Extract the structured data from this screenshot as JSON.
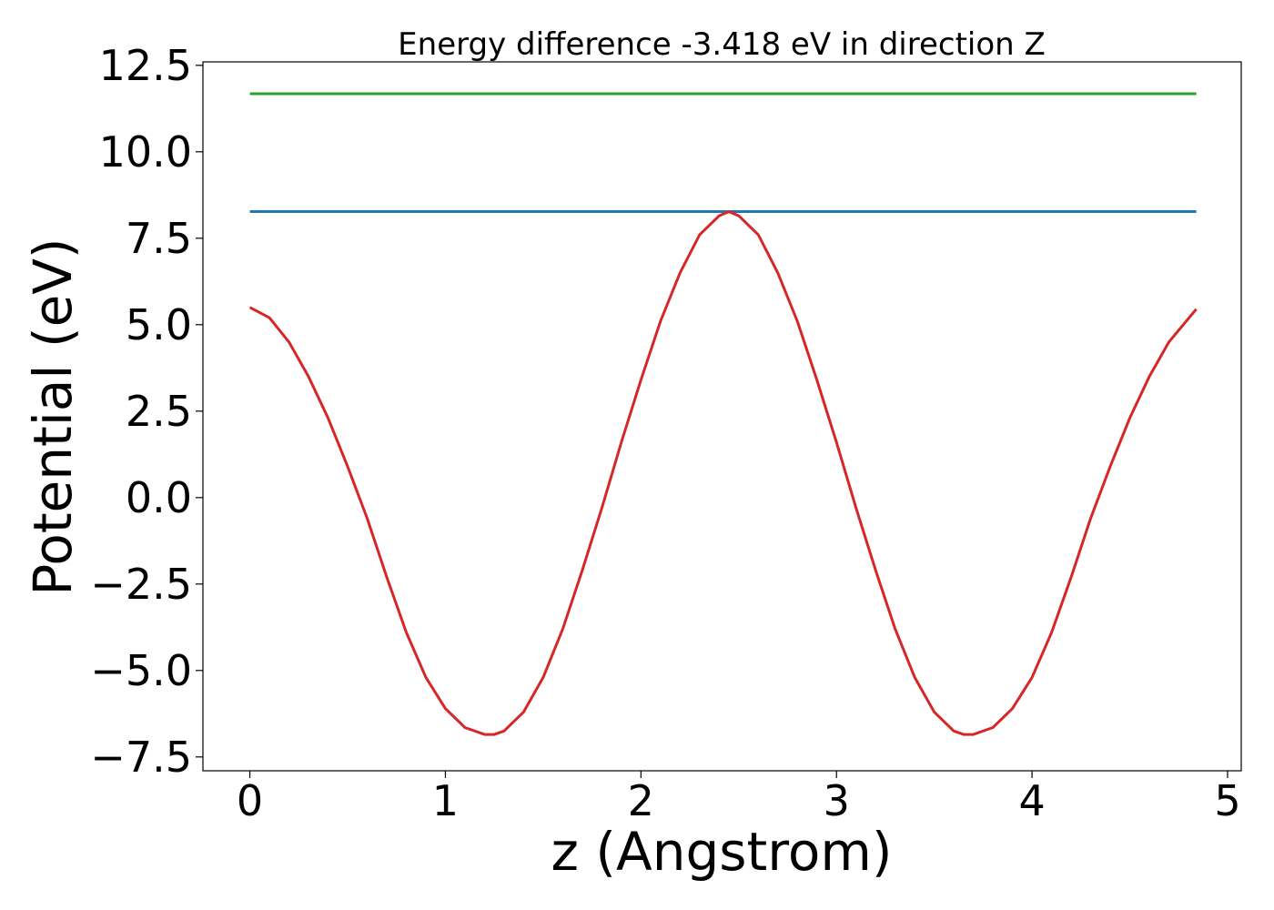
{
  "chart_data": {
    "type": "line",
    "title": "Energy difference -3.418 eV in direction Z",
    "xlabel": "z (Angstrom)",
    "ylabel": "Potential (eV)",
    "xlim": [
      -0.24,
      5.07
    ],
    "ylim": [
      -7.9,
      12.6
    ],
    "xticks": [
      0,
      1,
      2,
      3,
      4,
      5
    ],
    "xtick_labels": [
      "0",
      "1",
      "2",
      "3",
      "4",
      "5"
    ],
    "yticks": [
      -7.5,
      -5.0,
      -2.5,
      0.0,
      2.5,
      5.0,
      7.5,
      10.0,
      12.5
    ],
    "ytick_labels": [
      "−7.5",
      "−5.0",
      "−2.5",
      "0.0",
      "2.5",
      "5.0",
      "7.5",
      "10.0",
      "12.5"
    ],
    "grid": false,
    "legend": "none",
    "series": [
      {
        "color": "#2ca02c",
        "x": [
          0,
          4.84
        ],
        "y": [
          11.68,
          11.68
        ]
      },
      {
        "color": "#1f77b4",
        "x": [
          0,
          4.84
        ],
        "y": [
          8.27,
          8.27
        ]
      },
      {
        "color": "#d62728",
        "x": [
          0.0,
          0.1,
          0.2,
          0.3,
          0.4,
          0.5,
          0.6,
          0.7,
          0.8,
          0.9,
          1.0,
          1.1,
          1.2,
          1.25,
          1.3,
          1.4,
          1.5,
          1.6,
          1.7,
          1.8,
          1.9,
          2.0,
          2.1,
          2.2,
          2.3,
          2.4,
          2.45,
          2.5,
          2.6,
          2.7,
          2.8,
          2.9,
          3.0,
          3.1,
          3.2,
          3.3,
          3.4,
          3.5,
          3.6,
          3.65,
          3.7,
          3.8,
          3.9,
          4.0,
          4.1,
          4.2,
          4.3,
          4.4,
          4.5,
          4.6,
          4.7,
          4.84
        ],
        "y": [
          5.5,
          5.2,
          4.5,
          3.5,
          2.3,
          0.9,
          -0.6,
          -2.3,
          -3.9,
          -5.2,
          -6.1,
          -6.65,
          -6.85,
          -6.85,
          -6.75,
          -6.2,
          -5.2,
          -3.8,
          -2.1,
          -0.3,
          1.6,
          3.4,
          5.1,
          6.5,
          7.6,
          8.15,
          8.27,
          8.15,
          7.6,
          6.5,
          5.1,
          3.4,
          1.6,
          -0.3,
          -2.1,
          -3.8,
          -5.2,
          -6.2,
          -6.75,
          -6.85,
          -6.85,
          -6.65,
          -6.1,
          -5.2,
          -3.9,
          -2.3,
          -0.6,
          0.9,
          2.3,
          3.5,
          4.5,
          5.45
        ]
      }
    ]
  }
}
